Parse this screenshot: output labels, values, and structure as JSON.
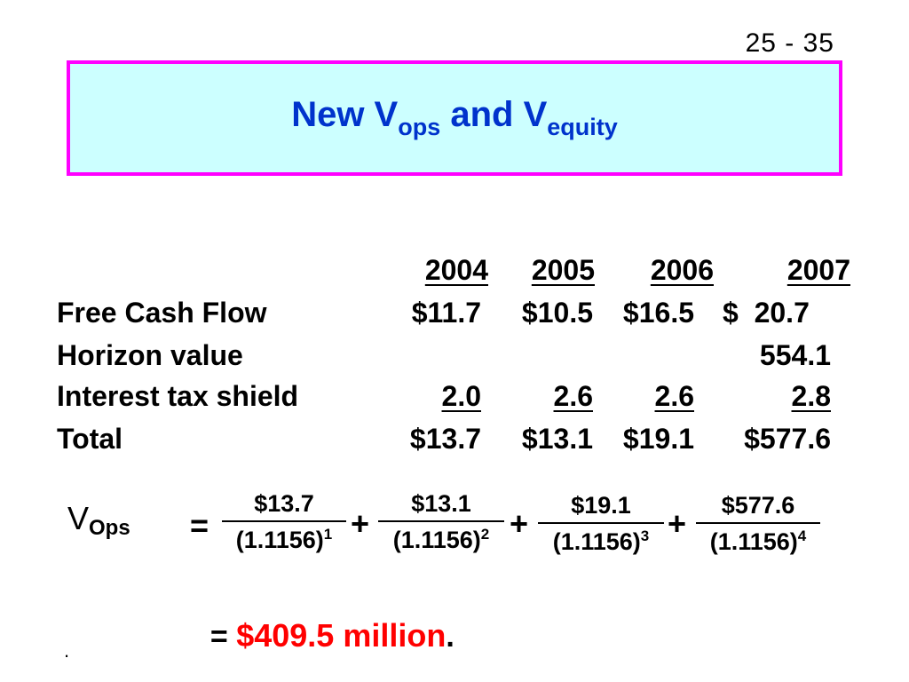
{
  "slide_number": "25 - 35",
  "title": {
    "text": "New V",
    "sub1": "ops",
    "mid": " and V",
    "sub2": "equity"
  },
  "table": {
    "years": [
      "2004",
      "2005",
      "2006",
      "2007"
    ],
    "rows": [
      {
        "label": "Free Cash Flow",
        "values": [
          "$11.7",
          "$10.5",
          "$16.5",
          "$  20.7"
        ]
      },
      {
        "label": "Horizon value",
        "values": [
          "",
          "",
          "",
          "554.1"
        ]
      },
      {
        "label": "Interest tax shield",
        "values": [
          "2.0",
          "2.6",
          "2.6",
          "2.8"
        ]
      },
      {
        "label": "Total",
        "values": [
          "$13.7",
          "$13.1",
          "$19.1",
          "$577.6"
        ]
      }
    ]
  },
  "formula": {
    "lhs": "V",
    "lhs_sub": "Ops",
    "equals": "=",
    "plus": "+",
    "fractions": [
      {
        "num": "$13.7",
        "den": "(1.1156)",
        "exp": "1"
      },
      {
        "num": "$13.1",
        "den": "(1.1156)",
        "exp": "2"
      },
      {
        "num": "$19.1",
        "den": "(1.1156)",
        "exp": "3"
      },
      {
        "num": "$577.6",
        "den": "(1.1156)",
        "exp": "4"
      }
    ],
    "result_prefix": "= ",
    "result_value": "$409.5 million",
    "result_suffix": "."
  },
  "footnote": "."
}
